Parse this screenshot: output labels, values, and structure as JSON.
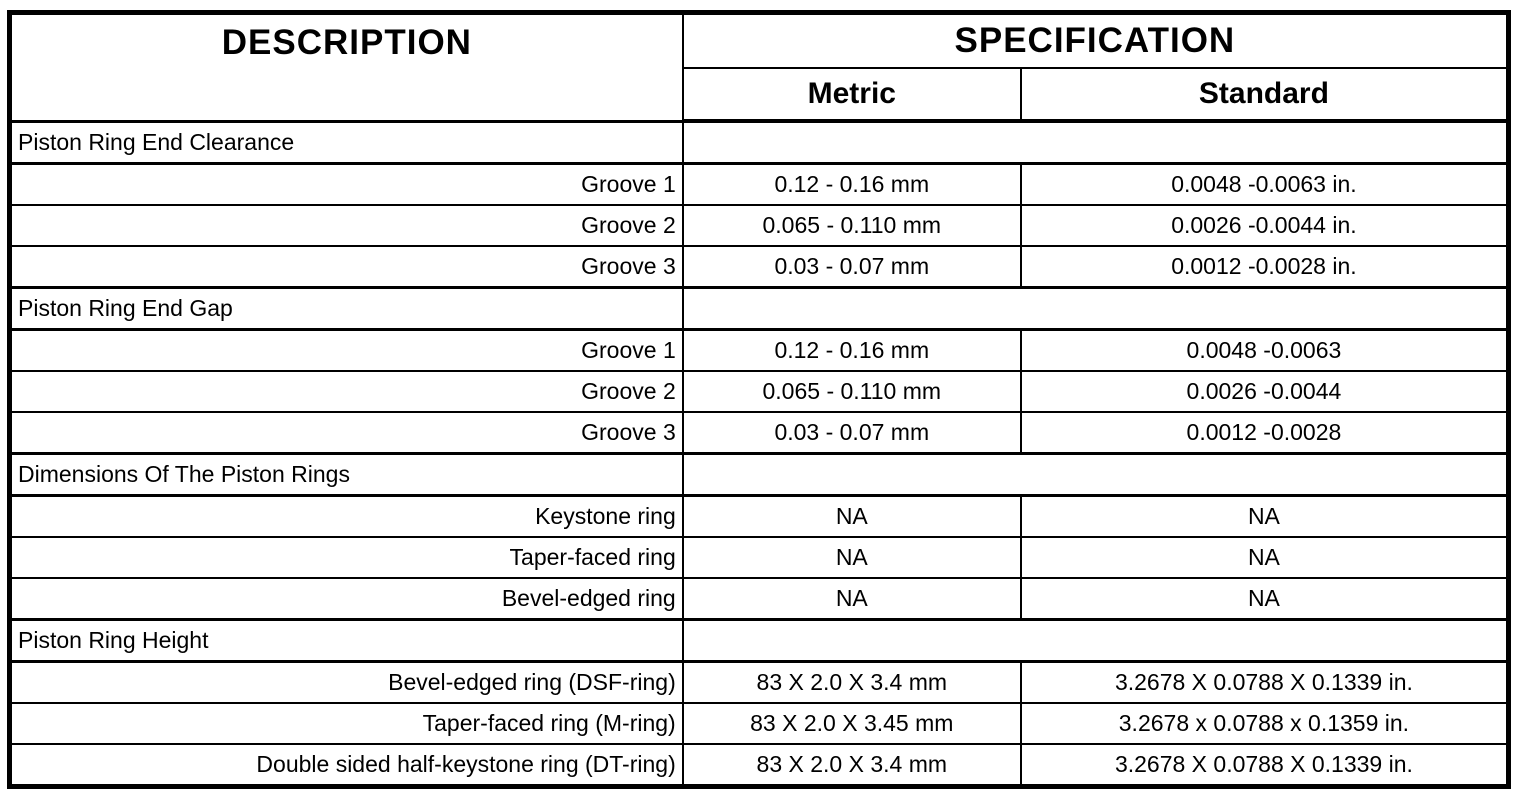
{
  "table": {
    "headers": {
      "description": "DESCRIPTION",
      "specification": "SPECIFICATION",
      "metric": "Metric",
      "standard": "Standard"
    },
    "rows": [
      {
        "type": "section",
        "label": "Piston Ring End Clearance",
        "metric": "",
        "standard": ""
      },
      {
        "type": "data",
        "label": "Groove 1",
        "metric": "0.12 - 0.16 mm",
        "standard": "0.0048 -0.0063 in."
      },
      {
        "type": "data",
        "label": "Groove 2",
        "metric": "0.065 - 0.110 mm",
        "standard": "0.0026 -0.0044 in."
      },
      {
        "type": "data",
        "label": "Groove 3",
        "metric": "0.03 - 0.07 mm",
        "standard": "0.0012 -0.0028 in."
      },
      {
        "type": "section",
        "label": "Piston Ring End Gap",
        "metric": "",
        "standard": ""
      },
      {
        "type": "data",
        "label": "Groove 1",
        "metric": "0.12 - 0.16 mm",
        "standard": "0.0048 -0.0063"
      },
      {
        "type": "data",
        "label": "Groove 2",
        "metric": "0.065 - 0.110 mm",
        "standard": "0.0026 -0.0044"
      },
      {
        "type": "data",
        "label": "Groove 3",
        "metric": "0.03 - 0.07 mm",
        "standard": "0.0012 -0.0028"
      },
      {
        "type": "section",
        "label": "Dimensions Of The Piston Rings",
        "metric": "",
        "standard": ""
      },
      {
        "type": "data",
        "label": "Keystone ring",
        "metric": "NA",
        "standard": "NA"
      },
      {
        "type": "data",
        "label": "Taper-faced ring",
        "metric": "NA",
        "standard": "NA"
      },
      {
        "type": "data",
        "label": "Bevel-edged ring",
        "metric": "NA",
        "standard": "NA"
      },
      {
        "type": "section",
        "label": "Piston Ring Height",
        "metric": "",
        "standard": ""
      },
      {
        "type": "data",
        "label": "Bevel-edged ring (DSF-ring)",
        "metric": "83 X 2.0 X 3.4 mm",
        "standard": "3.2678 X 0.0788 X 0.1339 in."
      },
      {
        "type": "data",
        "label": "Taper-faced ring (M-ring)",
        "metric": "83 X 2.0 X 3.45 mm",
        "standard": "3.2678 x 0.0788 x 0.1359 in."
      },
      {
        "type": "data",
        "label": "Double sided half-keystone ring (DT-ring)",
        "metric": "83 X 2.0 X 3.4 mm",
        "standard": "3.2678 X 0.0788 X 0.1339 in."
      }
    ]
  },
  "colors": {
    "border": "#000000",
    "background": "#ffffff",
    "text": "#000000"
  }
}
